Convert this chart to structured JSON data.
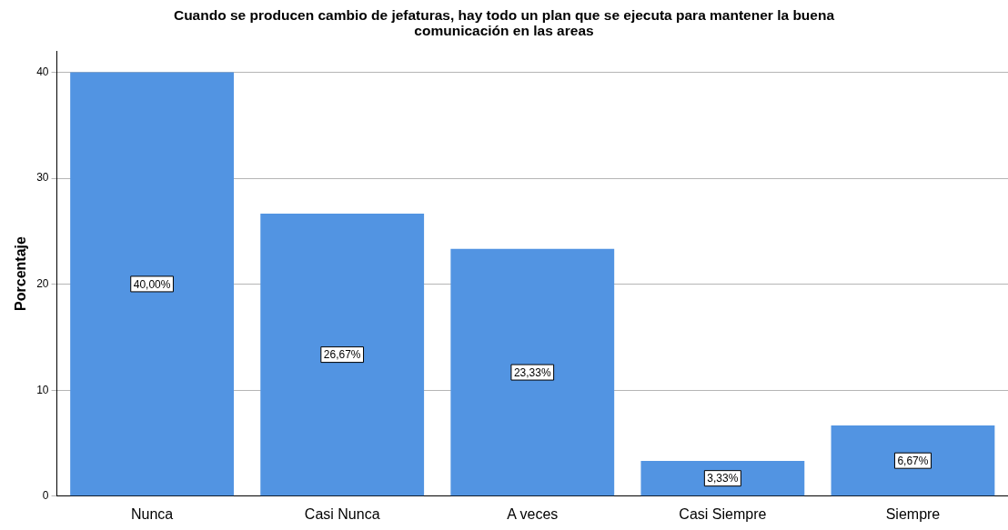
{
  "chart_data": {
    "type": "bar",
    "title": "Cuando se producen cambio de jefaturas, hay todo un plan que se ejecuta para mantener la buena comunicación en las areas",
    "ylabel": "Porcentaje",
    "categories": [
      "Nunca",
      "Casi Nunca",
      "A veces",
      "Casi Siempre",
      "Siempre"
    ],
    "values": [
      40,
      26.67,
      23.33,
      3.33,
      6.67
    ],
    "value_labels": [
      "40,00%",
      "26,67%",
      "23,33%",
      "3,33%",
      "6,67%"
    ],
    "color": "#5294e2",
    "ylim": [
      0,
      42
    ],
    "yticks": [
      0,
      10,
      20,
      30,
      40
    ],
    "grid": "y",
    "legend": false
  }
}
